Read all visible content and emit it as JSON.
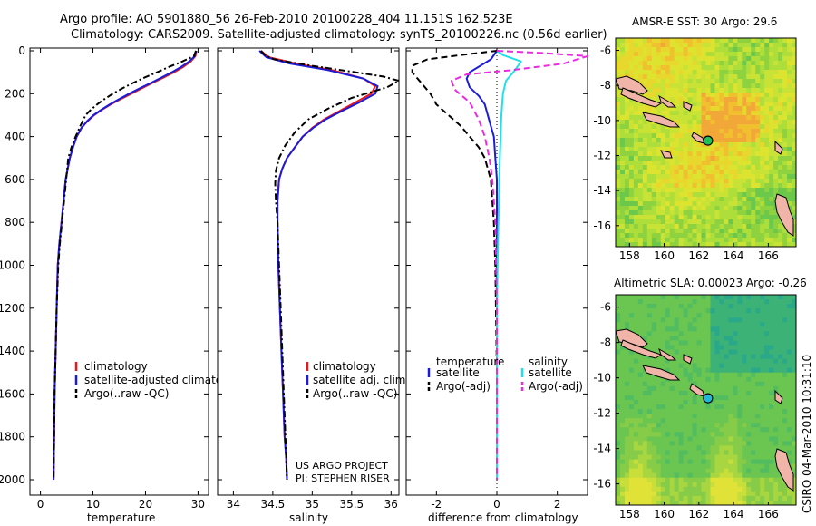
{
  "header": {
    "line1": "Argo profile: AO 5901880_56 26-Feb-2010 20100228_404 11.151S 162.523E",
    "line2": "Climatology: CARS2009. Satellite-adjusted climatology: synTS_20100226.nc (0.56d earlier)"
  },
  "footer": {
    "credit": "CSIRO 04-Mar-2010 10:31:10",
    "project_line1": "US ARGO PROJECT",
    "project_line2": "PI: STEPHEN RISER"
  },
  "colors": {
    "climatology": "#e8171c",
    "satellite": "#1b1bd8",
    "argo": "#000000",
    "cyan": "#22e0e8",
    "magenta": "#e82ae0",
    "land": "#f0b4a8"
  },
  "chart_data": [
    {
      "type": "line",
      "id": "temperature",
      "xlabel": "temperature",
      "ylabel": "",
      "xlim": [
        -2,
        32
      ],
      "ylim": [
        2050,
        0
      ],
      "xticks": [
        0,
        10,
        20,
        30
      ],
      "yticks": [
        0,
        200,
        400,
        600,
        800,
        1000,
        1200,
        1400,
        1600,
        1800,
        2000
      ],
      "series": [
        {
          "name": "climatology",
          "color": "#e8171c",
          "style": "solid",
          "x": [
            29.7,
            29.5,
            28.6,
            27.2,
            25.4,
            23.4,
            21.3,
            19.3,
            17.3,
            15.3,
            13.4,
            11.7,
            10.2,
            8.9,
            7.8,
            6.9,
            6.2,
            5.6,
            5.2,
            4.8,
            4.4,
            4.0,
            3.6,
            3.3,
            3.1,
            2.9,
            2.7,
            2.6,
            2.5
          ],
          "y": [
            0,
            25,
            50,
            75,
            100,
            125,
            150,
            175,
            200,
            225,
            250,
            275,
            300,
            330,
            360,
            400,
            450,
            500,
            550,
            600,
            700,
            800,
            900,
            1000,
            1200,
            1400,
            1600,
            1800,
            2000
          ]
        },
        {
          "name": "satellite-adjusted climatology",
          "color": "#1b1bd8",
          "style": "solid",
          "x": [
            29.6,
            29.4,
            28.3,
            26.8,
            25.0,
            23.0,
            21.0,
            18.9,
            16.9,
            15.0,
            13.2,
            11.6,
            10.1,
            8.8,
            7.8,
            6.9,
            6.2,
            5.6,
            5.2,
            4.8,
            4.4,
            4.0,
            3.6,
            3.3,
            3.1,
            2.9,
            2.7,
            2.6,
            2.5
          ],
          "y": [
            0,
            25,
            50,
            75,
            100,
            125,
            150,
            175,
            200,
            225,
            250,
            275,
            300,
            330,
            360,
            400,
            450,
            500,
            550,
            600,
            700,
            800,
            900,
            1000,
            1200,
            1400,
            1600,
            1800,
            2000
          ]
        },
        {
          "name": "Argo(..raw -QC)",
          "color": "#000000",
          "style": "dashdot",
          "x": [
            29.6,
            29.2,
            27.0,
            24.5,
            22.2,
            19.8,
            17.6,
            15.6,
            13.8,
            12.2,
            10.8,
            9.6,
            8.6,
            7.6,
            6.7,
            5.9,
            5.3,
            4.9,
            4.5,
            4.1,
            3.7,
            3.4,
            3.1,
            2.9,
            2.7,
            2.6,
            2.5
          ],
          "y": [
            0,
            25,
            50,
            75,
            100,
            125,
            150,
            175,
            200,
            225,
            250,
            275,
            300,
            350,
            400,
            450,
            500,
            600,
            700,
            800,
            900,
            1000,
            1200,
            1400,
            1600,
            1800,
            2000
          ]
        }
      ]
    },
    {
      "type": "line",
      "id": "salinity",
      "xlabel": "salinity",
      "ylabel": "",
      "xlim": [
        33.8,
        36.1
      ],
      "ylim": [
        2050,
        0
      ],
      "xticks": [
        34,
        34.5,
        35,
        35.5,
        36
      ],
      "series": [
        {
          "name": "climatology",
          "color": "#e8171c",
          "style": "solid",
          "x": [
            34.35,
            34.45,
            34.8,
            35.25,
            35.65,
            35.8,
            35.75,
            35.55,
            35.35,
            35.15,
            35.0,
            34.88,
            34.78,
            34.68,
            34.62,
            34.58,
            34.56,
            34.56,
            34.57,
            34.59,
            34.61,
            34.63,
            34.65,
            34.67,
            34.68
          ],
          "y": [
            0,
            30,
            60,
            90,
            130,
            165,
            200,
            240,
            280,
            320,
            360,
            400,
            450,
            500,
            550,
            600,
            700,
            800,
            1000,
            1200,
            1400,
            1600,
            1800,
            1900,
            2000
          ]
        },
        {
          "name": "satellite adj. clim.",
          "color": "#1b1bd8",
          "style": "solid",
          "x": [
            34.33,
            34.42,
            34.72,
            35.2,
            35.65,
            35.83,
            35.8,
            35.6,
            35.38,
            35.17,
            35.01,
            34.88,
            34.78,
            34.68,
            34.62,
            34.58,
            34.56,
            34.56,
            34.57,
            34.59,
            34.61,
            34.63,
            34.65,
            34.67,
            34.68
          ],
          "y": [
            0,
            30,
            60,
            90,
            130,
            165,
            200,
            240,
            280,
            320,
            360,
            400,
            450,
            500,
            550,
            600,
            700,
            800,
            1000,
            1200,
            1400,
            1600,
            1800,
            1900,
            2000
          ]
        },
        {
          "name": "Argo(..raw -QC)",
          "color": "#000000",
          "style": "dashdot",
          "x": [
            34.35,
            34.4,
            34.52,
            35.0,
            35.55,
            35.9,
            36.1,
            35.95,
            35.5,
            35.2,
            34.95,
            34.78,
            34.66,
            34.58,
            34.54,
            34.53,
            34.54,
            34.56,
            34.58,
            34.6,
            34.62,
            34.64,
            34.66,
            34.68
          ],
          "y": [
            0,
            20,
            40,
            70,
            100,
            120,
            140,
            170,
            220,
            270,
            320,
            380,
            440,
            500,
            560,
            620,
            700,
            800,
            1000,
            1200,
            1400,
            1600,
            1800,
            2000
          ]
        }
      ]
    },
    {
      "type": "line",
      "id": "difference",
      "xlabel": "difference from climatology",
      "ylabel": "",
      "xlim": [
        -3,
        3
      ],
      "ylim": [
        2050,
        0
      ],
      "xticks": [
        -2,
        0,
        2
      ],
      "legend_headers": [
        "temperature",
        "salinity"
      ],
      "series": [
        {
          "name": "satellite",
          "group": "temperature",
          "color": "#1b1bd8",
          "style": "solid",
          "x": [
            0,
            -0.2,
            -0.9,
            -1.0,
            -0.9,
            -0.6,
            -0.4,
            -0.3,
            -0.2,
            -0.1,
            -0.05,
            0,
            0,
            0,
            0
          ],
          "y": [
            0,
            40,
            100,
            130,
            170,
            210,
            250,
            300,
            350,
            400,
            500,
            600,
            1000,
            1500,
            2000
          ]
        },
        {
          "name": "Argo(-adj)",
          "group": "temperature",
          "color": "#000000",
          "style": "dashed",
          "x": [
            0,
            -1.2,
            -2.3,
            -2.8,
            -2.8,
            -2.5,
            -2.2,
            -2.0,
            -1.6,
            -1.2,
            -0.9,
            -0.6,
            -0.4,
            -0.3,
            -0.2,
            -0.15,
            -0.1,
            -0.05,
            0,
            0
          ],
          "y": [
            0,
            20,
            40,
            70,
            100,
            150,
            200,
            250,
            300,
            350,
            400,
            450,
            500,
            550,
            600,
            700,
            800,
            1000,
            1500,
            2000
          ]
        },
        {
          "name": "satellite",
          "group": "salinity",
          "color": "#22e0e8",
          "style": "solid",
          "x": [
            0,
            0.2,
            0.8,
            0.6,
            0.3,
            0.2,
            0.15,
            0.1,
            0.05,
            0,
            0
          ],
          "y": [
            0,
            20,
            50,
            90,
            140,
            200,
            300,
            500,
            800,
            1200,
            2000
          ]
        },
        {
          "name": "Argo(-adj)",
          "group": "salinity",
          "color": "#e82ae0",
          "style": "dashed",
          "x": [
            0,
            1.5,
            3.0,
            2.2,
            0.5,
            -1.0,
            -1.5,
            -1.4,
            -0.9,
            -0.6,
            -0.4,
            -0.25,
            -0.15,
            -0.05,
            0,
            0
          ],
          "y": [
            0,
            10,
            25,
            60,
            90,
            110,
            140,
            180,
            240,
            320,
            400,
            500,
            600,
            800,
            1200,
            2000
          ]
        }
      ]
    },
    {
      "type": "heatmap",
      "id": "sst-map",
      "title": "AMSR-E SST: 30 Argo: 29.6",
      "xlim": [
        157.2,
        167.6
      ],
      "ylim": [
        -17.2,
        -5.3
      ],
      "xticks": [
        158,
        160,
        162,
        164,
        166
      ],
      "yticks": [
        -6,
        -8,
        -10,
        -12,
        -14,
        -16
      ],
      "marker": {
        "lon": 162.523,
        "lat": -11.151,
        "color": "#22c25a"
      }
    },
    {
      "type": "heatmap",
      "id": "sla-map",
      "title": "Altimetric SLA: 0.00023 Argo: -0.26",
      "xlim": [
        157.2,
        167.6
      ],
      "ylim": [
        -17.2,
        -5.3
      ],
      "xticks": [
        158,
        160,
        162,
        164,
        166
      ],
      "yticks": [
        -6,
        -8,
        -10,
        -12,
        -14,
        -16
      ],
      "marker": {
        "lon": 162.523,
        "lat": -11.151,
        "color": "#21b8d8"
      }
    }
  ]
}
